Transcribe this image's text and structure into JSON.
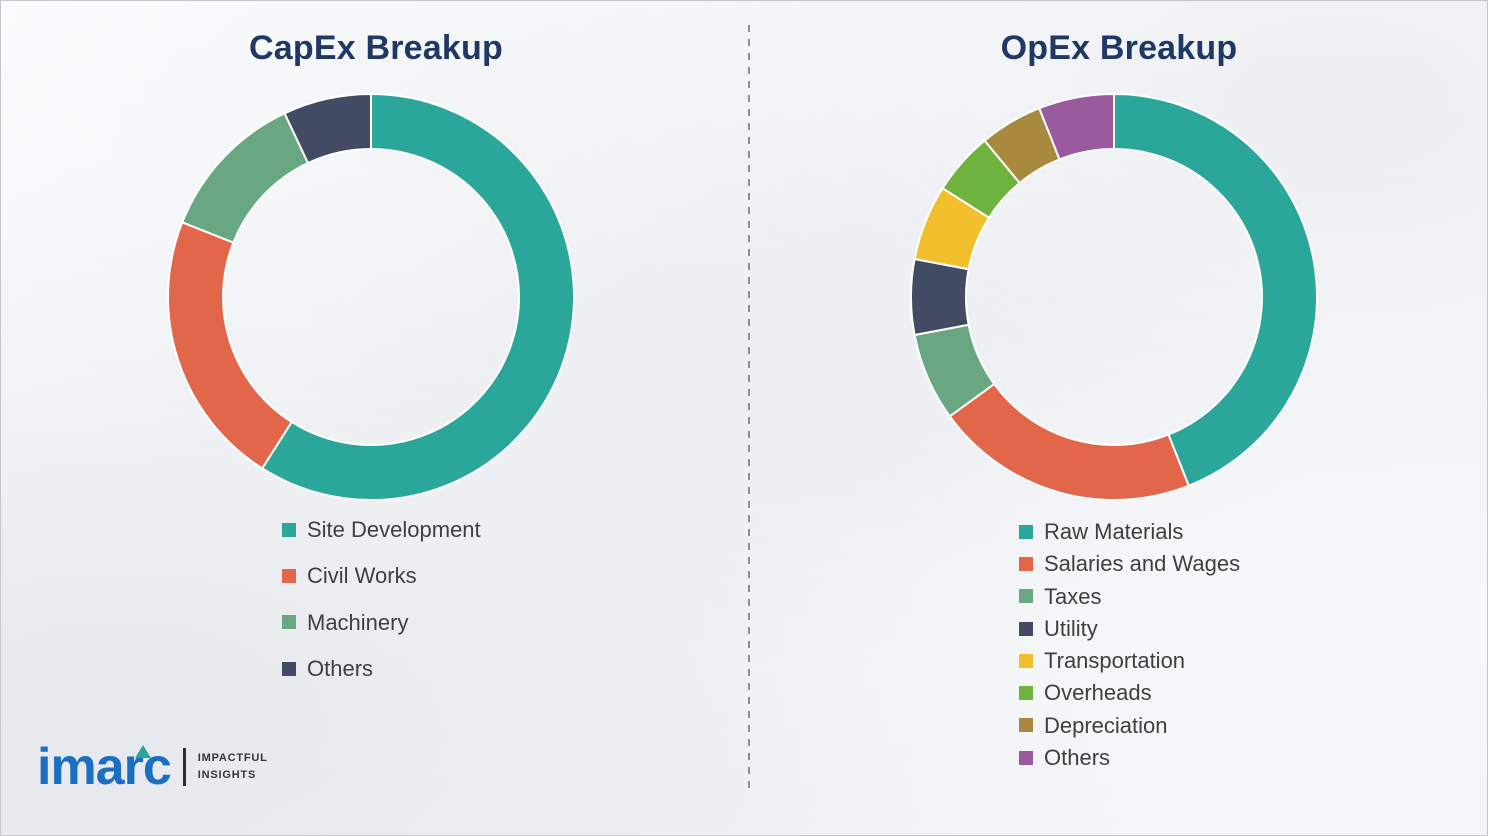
{
  "chart_data": [
    {
      "type": "pie",
      "variant": "donut",
      "title": "CapEx Breakup",
      "labels": [
        "Site Development",
        "Civil Works",
        "Machinery",
        "Others"
      ],
      "values": [
        59,
        22,
        12,
        7
      ],
      "colors": [
        "#2aa79a",
        "#e2674a",
        "#69a783",
        "#434a64"
      ],
      "unit": "percent",
      "start_angle": 0,
      "direction": "clockwise",
      "legend_position": "below-left"
    },
    {
      "type": "pie",
      "variant": "donut",
      "title": "OpEx Breakup",
      "labels": [
        "Raw Materials",
        "Salaries and Wages",
        "Taxes",
        "Utility",
        "Transportation",
        "Overheads",
        "Depreciation",
        "Others"
      ],
      "values": [
        44,
        21,
        7,
        6,
        6,
        5,
        5,
        6
      ],
      "colors": [
        "#2aa79a",
        "#e2674a",
        "#69a783",
        "#434a64",
        "#f2bf2c",
        "#6eb33e",
        "#a8893d",
        "#9a5a9e"
      ],
      "unit": "percent",
      "start_angle": 0,
      "direction": "clockwise",
      "legend_position": "below-left"
    }
  ],
  "title_color": "#1f3864",
  "legend_text_color": "#3f3f3f",
  "logo": {
    "brand": "imarc",
    "tagline_line1": "IMPACTFUL",
    "tagline_line2": "INSIGHTS",
    "brand_color": "#1b6fc1",
    "accent_color": "#2aa79a"
  }
}
